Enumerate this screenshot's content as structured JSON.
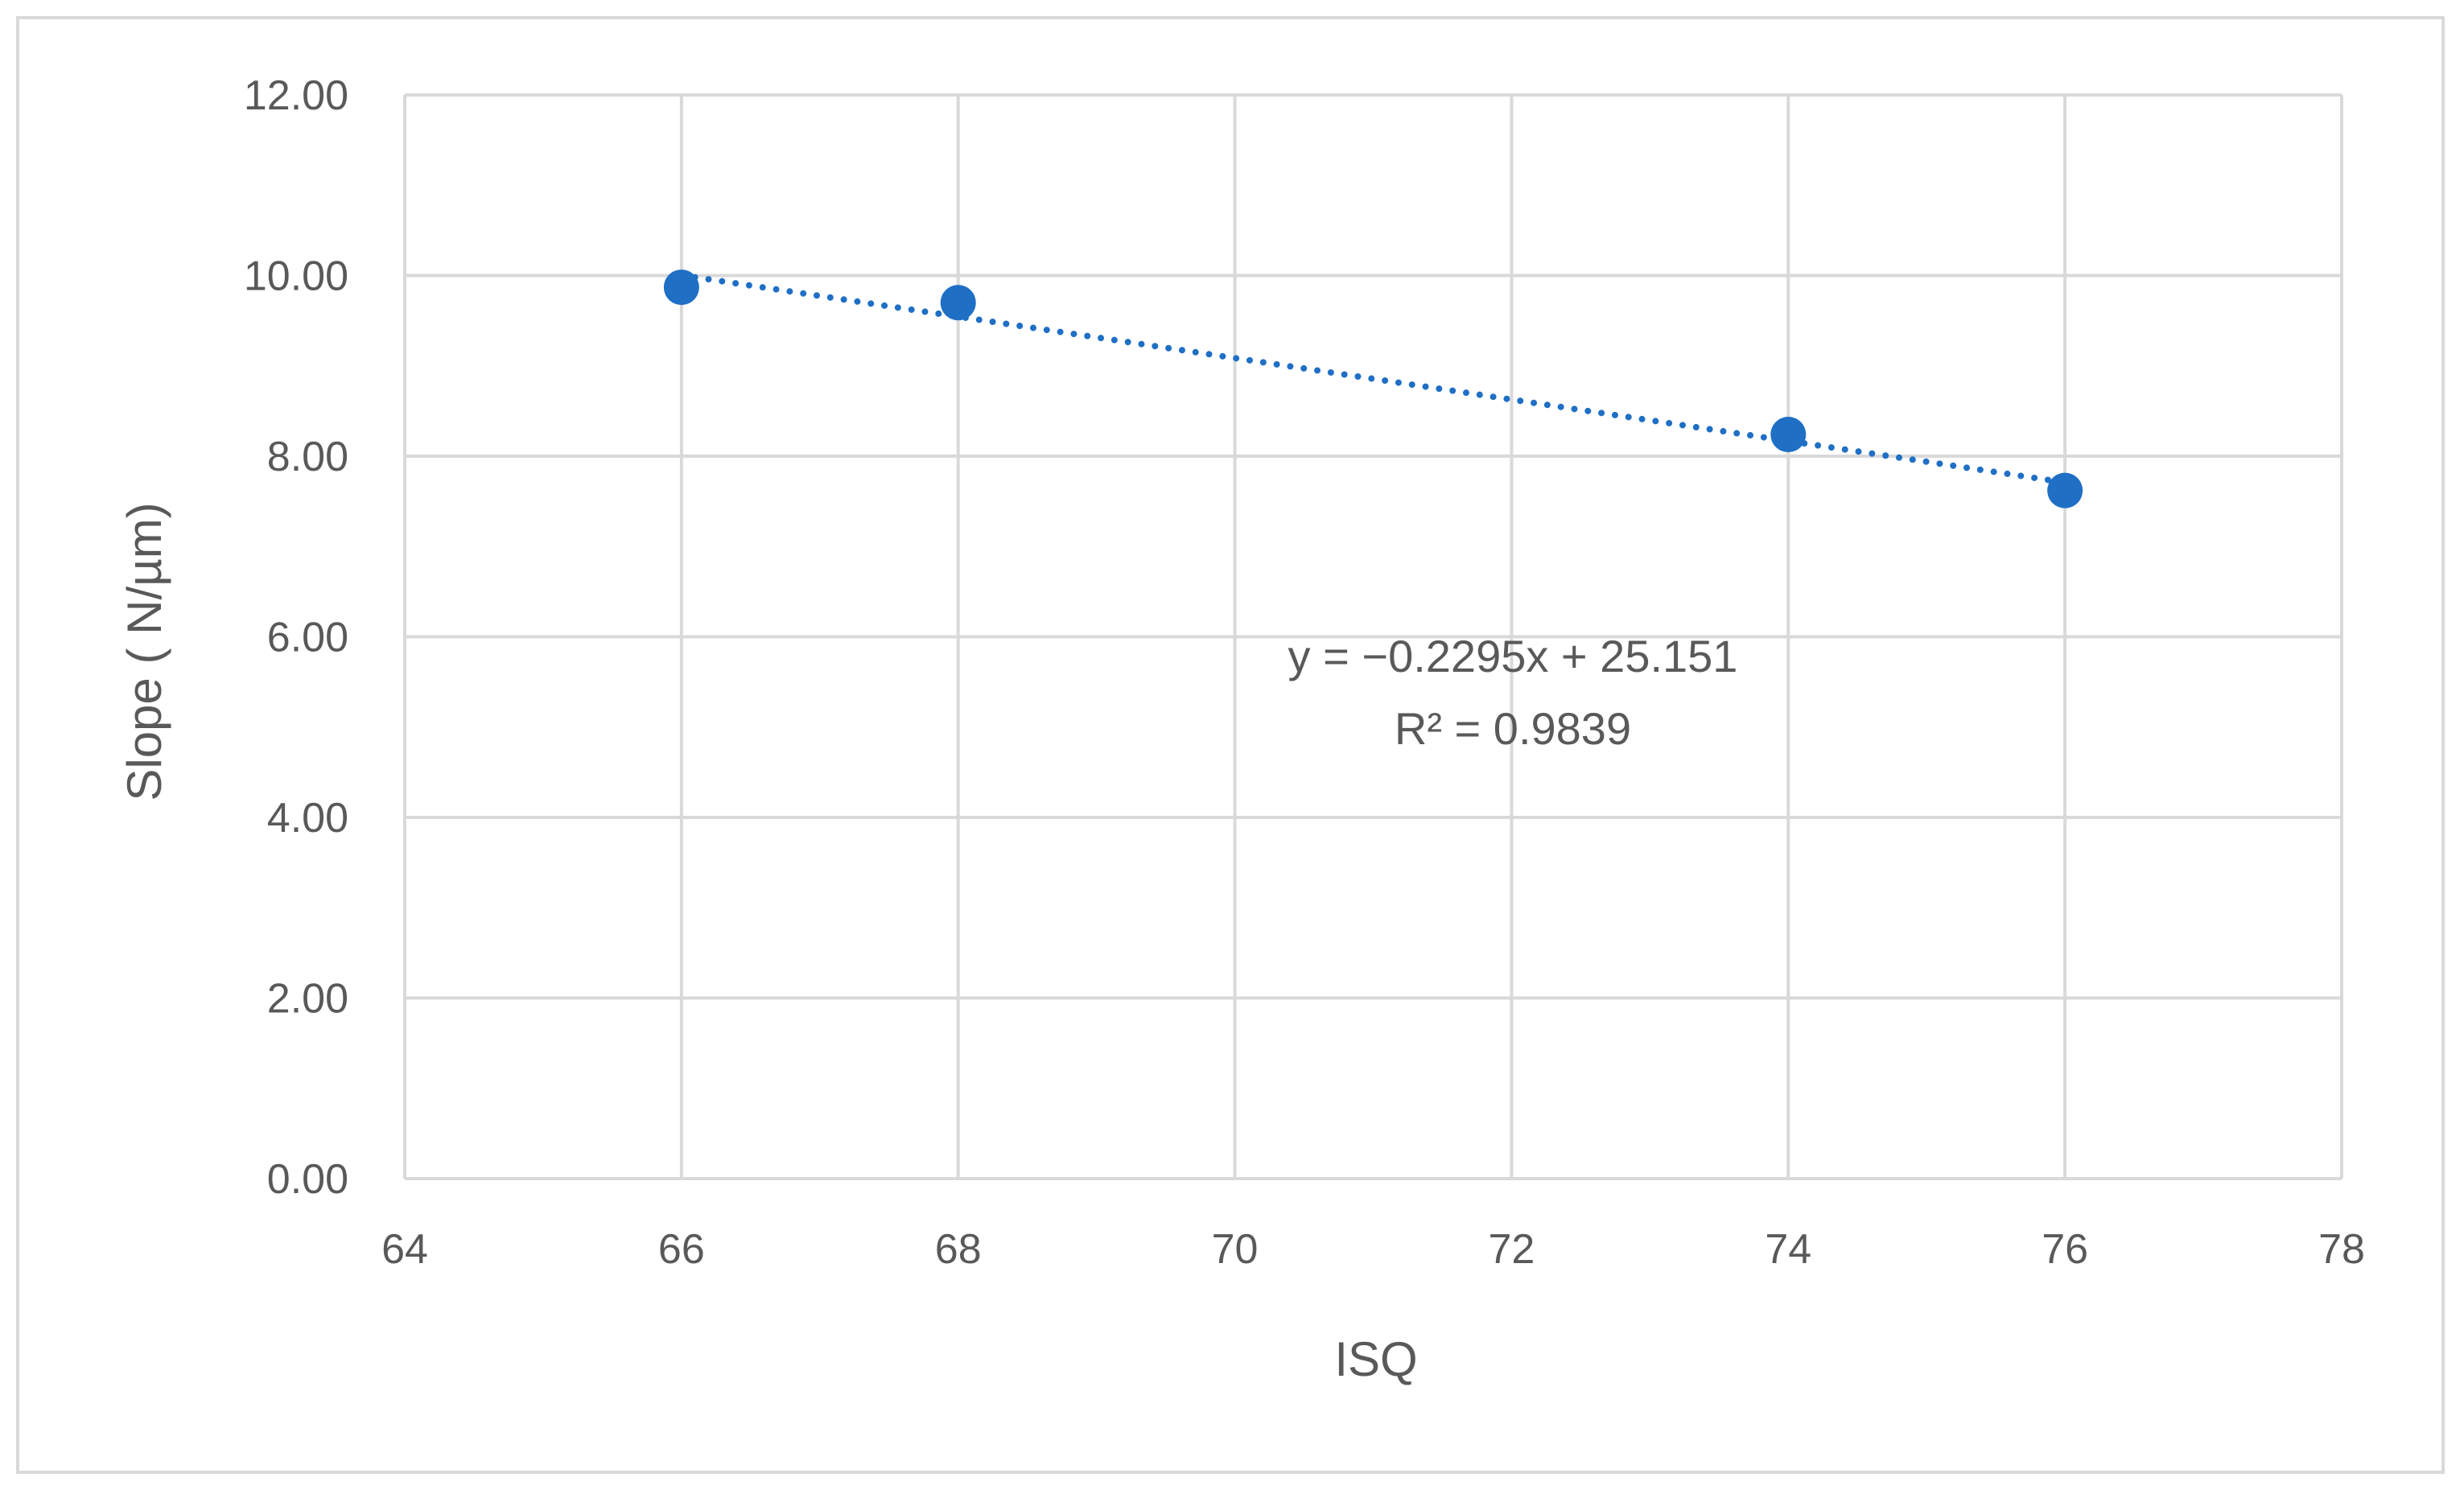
{
  "chart_data": {
    "type": "scatter",
    "title": "",
    "xlabel": "ISQ",
    "ylabel": "Slope ( N/µm)",
    "xlim": [
      64,
      78
    ],
    "ylim": [
      0,
      12
    ],
    "x_ticks": [
      64,
      66,
      68,
      70,
      72,
      74,
      76,
      78
    ],
    "x_tick_labels": [
      "64",
      "66",
      "68",
      "70",
      "72",
      "74",
      "76",
      "78"
    ],
    "y_ticks": [
      0,
      2,
      4,
      6,
      8,
      10,
      12
    ],
    "y_tick_labels": [
      "0.00",
      "2.00",
      "4.00",
      "6.00",
      "8.00",
      "10.00",
      "12.00"
    ],
    "grid": true,
    "series": [
      {
        "x": [
          66,
          68,
          74,
          76
        ],
        "y": [
          9.87,
          9.7,
          8.24,
          7.62
        ],
        "color": "#1f6fc5"
      }
    ],
    "trendline": {
      "type": "linear",
      "slope": -0.2295,
      "intercept": 25.151,
      "x_range": [
        66,
        76
      ],
      "style": "dotted",
      "color": "#1f6fc5"
    },
    "annotations": {
      "equation": "y = −0.2295x + 25.151",
      "r_squared": "R² = 0.9839"
    }
  }
}
